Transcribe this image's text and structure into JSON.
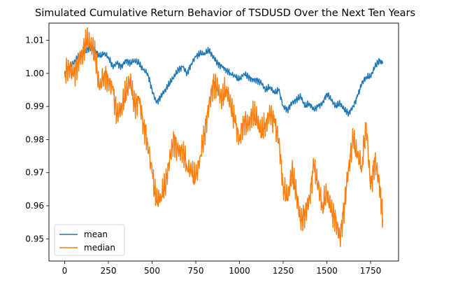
{
  "chart_data": {
    "type": "line",
    "title": "Simulated Cumulative Return Behavior of TSDUSD Over the Next Ten Years",
    "xlabel": "",
    "ylabel": "",
    "xlim": [
      -90,
      1910
    ],
    "ylim": [
      0.9433,
      1.0152
    ],
    "xticks": [
      0,
      250,
      500,
      750,
      1000,
      1250,
      1500,
      1750
    ],
    "yticks": [
      0.95,
      0.96,
      0.97,
      0.98,
      0.99,
      1.0,
      1.01
    ],
    "ytick_labels": [
      "0.95",
      "0.96",
      "0.97",
      "0.98",
      "0.99",
      "1.00",
      "1.01"
    ],
    "grid": false,
    "legend": {
      "position": "lower-left",
      "entries": [
        "mean",
        "median"
      ]
    },
    "colors": {
      "mean": "#1f77b4",
      "median": "#ff7f0e"
    },
    "series": [
      {
        "name": "mean",
        "x": [
          0,
          25,
          50,
          75,
          100,
          125,
          150,
          175,
          200,
          225,
          250,
          275,
          300,
          325,
          350,
          375,
          400,
          425,
          450,
          475,
          500,
          525,
          550,
          575,
          600,
          625,
          650,
          675,
          700,
          725,
          750,
          775,
          800,
          825,
          850,
          875,
          900,
          925,
          950,
          975,
          1000,
          1025,
          1050,
          1075,
          1100,
          1125,
          1150,
          1175,
          1200,
          1225,
          1250,
          1275,
          1300,
          1325,
          1350,
          1375,
          1400,
          1425,
          1450,
          1475,
          1500,
          1525,
          1550,
          1575,
          1600,
          1625,
          1650,
          1675,
          1700,
          1725,
          1750,
          1775,
          1800,
          1820
        ],
        "values": [
          1.0,
          1.002,
          1.003,
          1.005,
          1.006,
          1.007,
          1.008,
          1.007,
          1.005,
          1.006,
          1.005,
          1.002,
          1.003,
          1.002,
          1.004,
          1.003,
          1.004,
          1.003,
          1.001,
          1.0,
          0.995,
          0.991,
          0.993,
          0.995,
          0.997,
          0.999,
          1.001,
          1.002,
          1.0,
          1.003,
          1.005,
          1.006,
          1.006,
          1.007,
          1.005,
          1.003,
          1.002,
          1.001,
          1.0,
          0.999,
          0.998,
          1.0,
          0.999,
          0.998,
          0.998,
          0.997,
          0.995,
          0.996,
          0.994,
          0.995,
          0.99,
          0.989,
          0.991,
          0.992,
          0.993,
          0.99,
          0.991,
          0.989,
          0.99,
          0.991,
          0.994,
          0.992,
          0.99,
          0.991,
          0.989,
          0.988,
          0.99,
          0.993,
          0.997,
          0.999,
          0.999,
          1.002,
          1.004,
          1.003
        ]
      },
      {
        "name": "median",
        "x": [
          0,
          25,
          50,
          75,
          100,
          125,
          150,
          175,
          200,
          225,
          250,
          275,
          300,
          325,
          350,
          375,
          400,
          425,
          450,
          475,
          500,
          525,
          550,
          575,
          600,
          625,
          650,
          675,
          700,
          725,
          750,
          775,
          800,
          825,
          850,
          875,
          900,
          925,
          950,
          975,
          1000,
          1025,
          1050,
          1075,
          1100,
          1125,
          1150,
          1175,
          1200,
          1225,
          1250,
          1275,
          1300,
          1325,
          1350,
          1375,
          1400,
          1425,
          1450,
          1475,
          1500,
          1525,
          1550,
          1575,
          1600,
          1625,
          1650,
          1675,
          1700,
          1725,
          1750,
          1775,
          1800,
          1820
        ],
        "values": [
          1.0,
          1.002,
          0.999,
          1.003,
          1.006,
          1.01,
          1.009,
          1.005,
          0.995,
          1.0,
          0.998,
          0.995,
          0.987,
          0.99,
          0.994,
          0.998,
          0.99,
          0.992,
          0.985,
          0.979,
          0.97,
          0.961,
          0.963,
          0.966,
          0.974,
          0.98,
          0.976,
          0.977,
          0.972,
          0.97,
          0.968,
          0.975,
          0.982,
          0.99,
          0.997,
          0.995,
          0.992,
          0.996,
          0.99,
          0.985,
          0.98,
          0.986,
          0.984,
          0.988,
          0.986,
          0.982,
          0.985,
          0.988,
          0.985,
          0.98,
          0.966,
          0.962,
          0.97,
          0.964,
          0.955,
          0.958,
          0.962,
          0.972,
          0.966,
          0.96,
          0.964,
          0.958,
          0.956,
          0.95,
          0.96,
          0.972,
          0.98,
          0.975,
          0.972,
          0.985,
          0.965,
          0.974,
          0.967,
          0.956
        ]
      }
    ]
  }
}
